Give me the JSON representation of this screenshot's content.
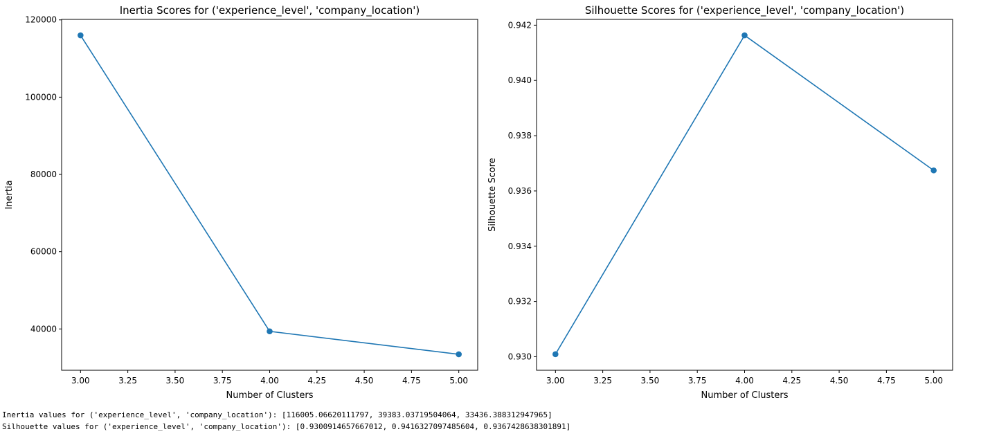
{
  "chart_data": [
    {
      "type": "line",
      "title": "Inertia Scores for ('experience_level', 'company_location')",
      "xlabel": "Number of Clusters",
      "ylabel": "Inertia",
      "x": [
        3,
        4,
        5
      ],
      "series": [
        {
          "values": [
            116005.06620111797,
            39383.03719504064,
            33436.388312947965
          ]
        }
      ],
      "xlim": [
        2.9,
        5.1
      ],
      "ylim": [
        29307.95,
        120133.5
      ],
      "xticks": [
        "3.00",
        "3.25",
        "3.50",
        "3.75",
        "4.00",
        "4.25",
        "4.50",
        "4.75",
        "5.00"
      ],
      "yticks": [
        "40000",
        "60000",
        "80000",
        "100000",
        "120000"
      ],
      "grid": false,
      "color": "#1f77b4"
    },
    {
      "type": "line",
      "title": "Silhouette Scores for ('experience_level', 'company_location')",
      "xlabel": "Number of Clusters",
      "ylabel": "Silhouette Score",
      "x": [
        3,
        4,
        5
      ],
      "series": [
        {
          "values": [
            0.9300914657667012,
            0.9416327097485604,
            0.9367428638301891
          ]
        }
      ],
      "xlim": [
        2.9,
        5.1
      ],
      "ylim": [
        0.92951,
        0.94221
      ],
      "xticks": [
        "3.00",
        "3.25",
        "3.50",
        "3.75",
        "4.00",
        "4.25",
        "4.50",
        "4.75",
        "5.00"
      ],
      "yticks": [
        "0.930",
        "0.932",
        "0.934",
        "0.936",
        "0.938",
        "0.940",
        "0.942"
      ],
      "grid": false,
      "color": "#1f77b4"
    }
  ],
  "output": {
    "inertia_line": "Inertia values for ('experience_level', 'company_location'): [116005.06620111797, 39383.03719504064, 33436.388312947965]",
    "silhouette_line": "Silhouette values for ('experience_level', 'company_location'): [0.9300914657667012, 0.9416327097485604, 0.9367428638301891]"
  }
}
